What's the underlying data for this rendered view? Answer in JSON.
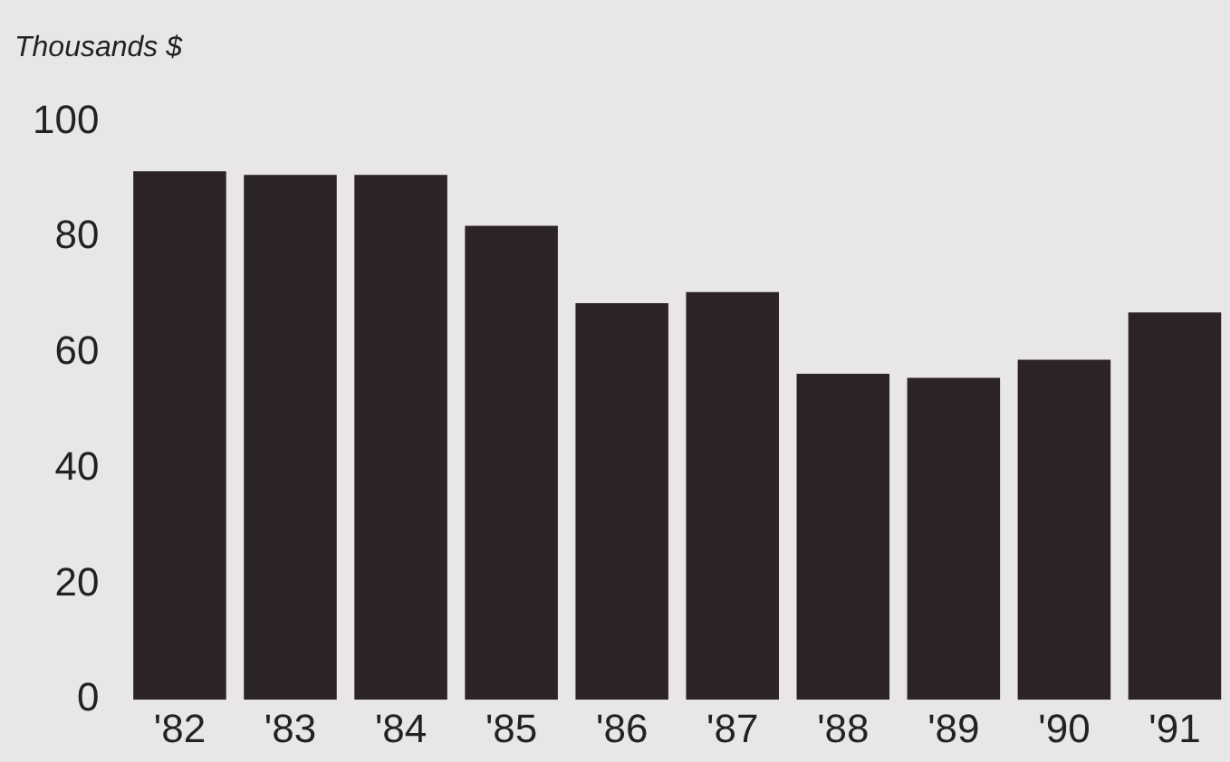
{
  "chart_data": {
    "type": "bar",
    "ylabel": "Thousands $",
    "categories": [
      "'82",
      "'83",
      "'84",
      "'85",
      "'86",
      "'87",
      "'88",
      "'89",
      "'90",
      "'91"
    ],
    "values": [
      91.4,
      90.8,
      90.8,
      82,
      68.6,
      70.5,
      56.4,
      55.7,
      58.8,
      67
    ],
    "color": "#2b2327",
    "ylim": [
      0,
      100
    ],
    "yticks": [
      0,
      20,
      40,
      60,
      80,
      100
    ],
    "grid": false,
    "legend": false
  }
}
